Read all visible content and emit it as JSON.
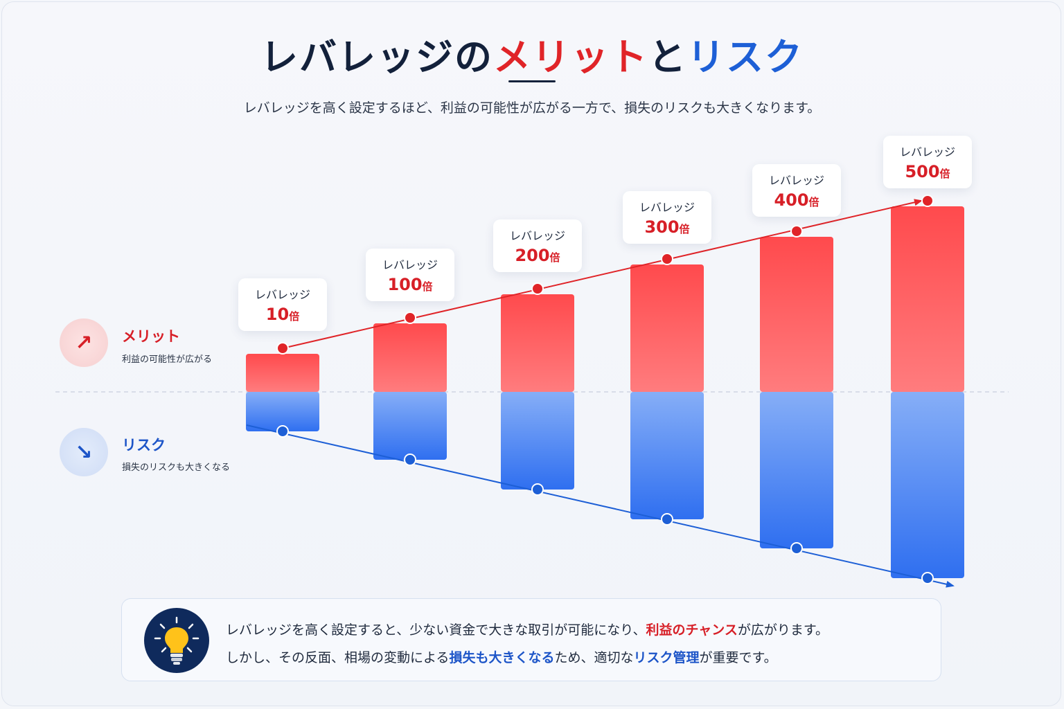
{
  "title": {
    "part1": "レバレッジの",
    "merit": "メリット",
    "part2": "と",
    "risk": "リスク"
  },
  "subtitle": "レバレッジを高く設定するほど、利益の可能性が広がる一方で、損失のリスクも大きくなります。",
  "legend": {
    "merit": {
      "title": "メリット",
      "desc": "利益の可能性が広がる",
      "icon": "arrow-up-right-icon"
    },
    "risk": {
      "title": "リスク",
      "desc": "損失のリスクも大きくなる",
      "icon": "arrow-down-right-icon"
    }
  },
  "colors": {
    "merit": "#e02428",
    "risk": "#1d5fd6",
    "title": "#13213b"
  },
  "chart_data": {
    "type": "bar",
    "categories": [
      "10倍",
      "100倍",
      "200倍",
      "300倍",
      "400倍",
      "500倍"
    ],
    "label_prefix": "レバレッジ",
    "label_values": [
      "10",
      "100",
      "200",
      "300",
      "400",
      "500"
    ],
    "label_unit": "倍",
    "series": [
      {
        "values": [
          10,
          100,
          200,
          300,
          400,
          500
        ]
      },
      {
        "values": [
          -10,
          -100,
          -200,
          -300,
          -400,
          -500
        ]
      }
    ],
    "grid": false
  },
  "info": {
    "icon": "lightbulb-icon",
    "line1": {
      "pre": "レバレッジを高く設定すると、少ない資金で大きな取引が可能になり、",
      "hl": "利益のチャンス",
      "post": "が広がります。"
    },
    "line2": {
      "pre": "しかし、その反面、相場の変動による",
      "hl1": "損失も大きくなる",
      "mid": "ため、適切な",
      "hl2": "リスク管理",
      "post": "が重要です。"
    }
  }
}
